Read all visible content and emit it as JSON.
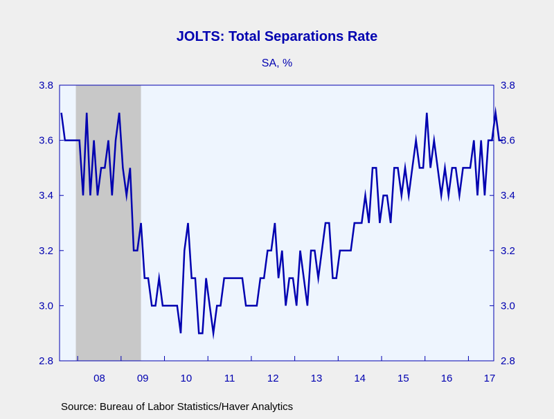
{
  "chart_data": {
    "type": "line",
    "title": "JOLTS: Total Separations Rate",
    "subtitle": "SA, %",
    "source": "Source:  Bureau of Labor Statistics/Haver Analytics",
    "ylim": [
      2.8,
      3.8
    ],
    "yticks": [
      2.8,
      3.0,
      3.2,
      3.4,
      3.6,
      3.8
    ],
    "ytick_labels": [
      "2.8",
      "3.0",
      "3.2",
      "3.4",
      "3.6",
      "3.8"
    ],
    "xlim": [
      "2007-08",
      "2017-07"
    ],
    "x_tick_labels": [
      "08",
      "09",
      "10",
      "11",
      "12",
      "13",
      "14",
      "15",
      "16",
      "17"
    ],
    "recession": {
      "start": "2007-12",
      "end": "2009-06"
    },
    "grid": false,
    "colors": {
      "line": "#0000b0",
      "axis": "#0000b0",
      "plot_bg": "#eef5fe",
      "recession": "#c8c8c8",
      "page_bg": "#efefef"
    },
    "series": [
      {
        "start": "2007-08",
        "values": [
          3.7,
          3.6,
          3.6,
          3.6,
          3.6,
          3.6,
          3.4,
          3.7,
          3.4,
          3.6,
          3.4,
          3.5,
          3.5,
          3.6,
          3.4,
          3.6,
          3.7,
          3.5,
          3.4,
          3.5,
          3.2,
          3.2,
          3.3,
          3.1,
          3.1,
          3.0,
          3.0,
          3.1,
          3.0,
          3.0,
          3.0,
          3.0,
          3.0,
          2.9,
          3.2,
          3.3,
          3.1,
          3.1,
          2.9,
          2.9,
          3.1,
          3.0,
          2.9,
          3.0,
          3.0,
          3.1,
          3.1,
          3.1,
          3.1,
          3.1,
          3.1,
          3.0,
          3.0,
          3.0,
          3.0,
          3.1,
          3.1,
          3.2,
          3.2,
          3.3,
          3.1,
          3.2,
          3.0,
          3.1,
          3.1,
          3.0,
          3.2,
          3.1,
          3.0,
          3.2,
          3.2,
          3.1,
          3.2,
          3.3,
          3.3,
          3.1,
          3.1,
          3.2,
          3.2,
          3.2,
          3.2,
          3.3,
          3.3,
          3.3,
          3.4,
          3.3,
          3.5,
          3.5,
          3.3,
          3.4,
          3.4,
          3.3,
          3.5,
          3.5,
          3.4,
          3.5,
          3.4,
          3.5,
          3.6,
          3.5,
          3.5,
          3.7,
          3.5,
          3.6,
          3.5,
          3.4,
          3.5,
          3.4,
          3.5,
          3.5,
          3.4,
          3.5,
          3.5,
          3.5,
          3.6,
          3.4,
          3.6,
          3.4,
          3.6,
          3.6,
          3.7,
          3.6,
          3.6
        ]
      }
    ]
  }
}
